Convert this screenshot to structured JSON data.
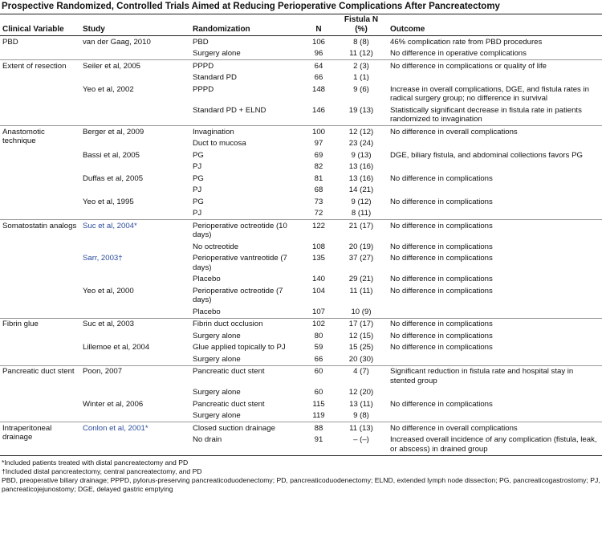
{
  "title": "Prospective Randomized, Controlled Trials Aimed at Reducing Perioperative Complications After Pancreatectomy",
  "columns": [
    "Clinical Variable",
    "Study",
    "Randomization",
    "N",
    "Fistula N (%)",
    "Outcome"
  ],
  "groups": [
    {
      "variable": "PBD",
      "studies": [
        {
          "study": "van der Gaag, 2010",
          "arms": [
            {
              "randomization": "PBD",
              "n": 106,
              "fistula": "8 (8)",
              "outcome": "46% complication rate from PBD procedures"
            },
            {
              "randomization": "Surgery alone",
              "n": 96,
              "fistula": "11 (12)",
              "outcome": "No difference in operative complications"
            }
          ]
        }
      ]
    },
    {
      "variable": "Extent of resection",
      "studies": [
        {
          "study": "Seiler et al, 2005",
          "arms": [
            {
              "randomization": "PPPD",
              "n": 64,
              "fistula": "2 (3)",
              "outcome": "No difference in complications or quality of life"
            },
            {
              "randomization": "Standard PD",
              "n": 66,
              "fistula": "1 (1)"
            }
          ]
        },
        {
          "study": "Yeo et al, 2002",
          "arms": [
            {
              "randomization": "PPPD",
              "n": 148,
              "fistula": "9 (6)",
              "outcome": "Increase in overall complications, DGE, and fistula rates in radical surgery group; no difference in survival"
            },
            {
              "randomization": "Standard PD + ELND",
              "n": 146,
              "fistula": "19 (13)",
              "outcome": "Statistically significant decrease in fistula rate in patients randomized to invagination"
            }
          ]
        }
      ]
    },
    {
      "variable": "Anastomotic technique",
      "studies": [
        {
          "study": "Berger et al, 2009",
          "arms": [
            {
              "randomization": "Invagination",
              "n": 100,
              "fistula": "12 (12)",
              "outcome": "No difference in overall complications"
            },
            {
              "randomization": "Duct to mucosa",
              "n": 97,
              "fistula": "23 (24)"
            }
          ]
        },
        {
          "study": "Bassi et al, 2005",
          "arms": [
            {
              "randomization": "PG",
              "n": 69,
              "fistula": "9 (13)",
              "outcome": "DGE, biliary fistula, and abdominal collections favors PG"
            },
            {
              "randomization": "PJ",
              "n": 82,
              "fistula": "13 (16)"
            }
          ]
        },
        {
          "study": "Duffas et al, 2005",
          "arms": [
            {
              "randomization": "PG",
              "n": 81,
              "fistula": "13 (16)",
              "outcome": "No difference in complications"
            },
            {
              "randomization": "PJ",
              "n": 68,
              "fistula": "14 (21)"
            }
          ]
        },
        {
          "study": "Yeo et al, 1995",
          "arms": [
            {
              "randomization": "PG",
              "n": 73,
              "fistula": "9 (12)",
              "outcome": "No difference in complications"
            },
            {
              "randomization": "PJ",
              "n": 72,
              "fistula": "8 (11)"
            }
          ]
        }
      ]
    },
    {
      "variable": "Somatostatin analogs",
      "studies": [
        {
          "study": "Suc et al, 2004*",
          "arms": [
            {
              "randomization": "Perioperative octreotide (10 days)",
              "n": 122,
              "fistula": "21 (17)",
              "outcome": "No difference in complications"
            },
            {
              "randomization": "No octreotide",
              "n": 108,
              "fistula": "20 (19)",
              "outcome": "No difference in complications"
            }
          ]
        },
        {
          "study": "Sarr, 2003†",
          "arms": [
            {
              "randomization": "Perioperative vantreotide (7 days)",
              "n": 135,
              "fistula": "37 (27)",
              "outcome": "No difference in complications"
            },
            {
              "randomization": "Placebo",
              "n": 140,
              "fistula": "29 (21)",
              "outcome": "No difference in complications"
            }
          ]
        },
        {
          "study": "Yeo et al, 2000",
          "arms": [
            {
              "randomization": "Perioperative octreotide (7 days)",
              "n": 104,
              "fistula": "11 (11)",
              "outcome": "No difference in complications"
            },
            {
              "randomization": "Placebo",
              "n": 107,
              "fistula": "10 (9)"
            }
          ]
        }
      ]
    },
    {
      "variable": "Fibrin glue",
      "studies": [
        {
          "study": "Suc et al, 2003",
          "arms": [
            {
              "randomization": "Fibrin duct occlusion",
              "n": 102,
              "fistula": "17 (17)",
              "outcome": "No difference in complications"
            },
            {
              "randomization": "Surgery alone",
              "n": 80,
              "fistula": "12 (15)",
              "outcome": "No difference in complications"
            }
          ]
        },
        {
          "study": "Lillemoe et al, 2004",
          "arms": [
            {
              "randomization": "Glue applied topically to PJ",
              "n": 59,
              "fistula": "15 (25)",
              "outcome": "No difference in complications"
            },
            {
              "randomization": "Surgery alone",
              "n": 66,
              "fistula": "20 (30)"
            }
          ]
        }
      ]
    },
    {
      "variable": "Pancreatic duct stent",
      "studies": [
        {
          "study": "Poon, 2007",
          "arms": [
            {
              "randomization": "Pancreatic duct stent",
              "n": 60,
              "fistula": "4 (7)",
              "outcome": "Significant reduction in fistula rate and hospital stay in stented group"
            },
            {
              "randomization": "Surgery alone",
              "n": 60,
              "fistula": "12 (20)"
            }
          ]
        },
        {
          "study": "Winter et al, 2006",
          "arms": [
            {
              "randomization": "Pancreatic duct stent",
              "n": 115,
              "fistula": "13 (11)",
              "outcome": "No difference in complications"
            },
            {
              "randomization": "Surgery alone",
              "n": 119,
              "fistula": "9 (8)"
            }
          ]
        }
      ]
    },
    {
      "variable": "Intraperitoneal drainage",
      "studies": [
        {
          "study": "Conlon et al, 2001*",
          "arms": [
            {
              "randomization": "Closed suction drainage",
              "n": 88,
              "fistula": "11 (13)",
              "outcome": "No difference in overall complications"
            },
            {
              "randomization": "No drain",
              "n": 91,
              "fistula": "– (–)",
              "outcome": "Increased overall incidence of any complication (fistula, leak, or abscess) in drained group"
            }
          ]
        }
      ]
    }
  ],
  "footnotes": [
    "*Included patients treated with distal pancreatectomy and PD",
    "†Included distal pancreatectomy, central pancreatectomy, and PD",
    "PBD, preoperative biliary drainage; PPPD, pylorus-preserving pancreaticoduodenectomy; PD, pancreaticoduodenectomy; ELND, extended lymph node dissection; PG, pancreaticogastrostomy; PJ, pancreaticojejunostomy; DGE, delayed gastric emptying"
  ]
}
